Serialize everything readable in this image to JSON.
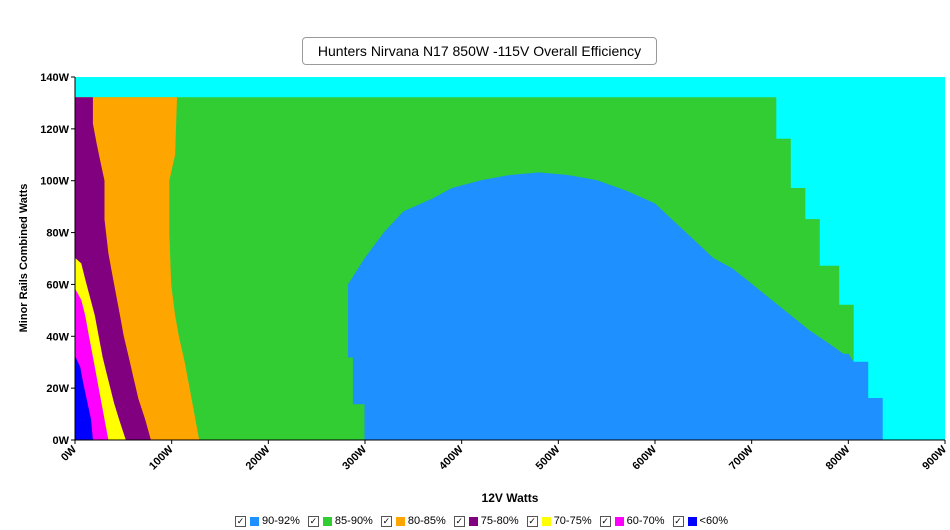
{
  "chart_data": {
    "type": "heatmap",
    "title": "Hunters Nirvana N17 850W -115V Overall Efficiency",
    "xlabel": "12V Watts",
    "ylabel": "Minor Rails Combined Watts",
    "xlim": [
      0,
      900
    ],
    "ylim": [
      0,
      140
    ],
    "x_ticks": [
      "0W",
      "100W",
      "200W",
      "300W",
      "400W",
      "500W",
      "600W",
      "700W",
      "800W",
      "900W"
    ],
    "y_ticks": [
      "0W",
      "20W",
      "40W",
      "60W",
      "80W",
      "100W",
      "120W",
      "140W"
    ],
    "background_color": "#00FFFF",
    "legend": [
      {
        "label": "90-92%",
        "color": "#1E90FF"
      },
      {
        "label": "85-90%",
        "color": "#32CD32"
      },
      {
        "label": "80-85%",
        "color": "#FFA500"
      },
      {
        "label": "75-80%",
        "color": "#800080"
      },
      {
        "label": "70-75%",
        "color": "#FFFF00"
      },
      {
        "label": "60-70%",
        "color": "#FF00FF"
      },
      {
        "label": "<60%",
        "color": "#0000FF"
      }
    ],
    "regions": [
      {
        "band": "85-90%",
        "color": "#32CD32",
        "boundary": [
          [
            0,
            0
          ],
          [
            0,
            132
          ],
          [
            725,
            132
          ],
          [
            725,
            116
          ],
          [
            740,
            116
          ],
          [
            740,
            97
          ],
          [
            755,
            97
          ],
          [
            755,
            85
          ],
          [
            770,
            85
          ],
          [
            770,
            67
          ],
          [
            790,
            67
          ],
          [
            790,
            52
          ],
          [
            805,
            52
          ],
          [
            805,
            0
          ]
        ]
      },
      {
        "band": "90-92%",
        "color": "#1E90FF",
        "boundary": [
          [
            300,
            0
          ],
          [
            300,
            14
          ],
          [
            288,
            14
          ],
          [
            288,
            32
          ],
          [
            283,
            32
          ],
          [
            283,
            60
          ],
          [
            300,
            70
          ],
          [
            320,
            80
          ],
          [
            340,
            88
          ],
          [
            370,
            93
          ],
          [
            390,
            97
          ],
          [
            420,
            100
          ],
          [
            450,
            102
          ],
          [
            480,
            103
          ],
          [
            510,
            102
          ],
          [
            540,
            100
          ],
          [
            570,
            96
          ],
          [
            600,
            91
          ],
          [
            620,
            84
          ],
          [
            640,
            77
          ],
          [
            660,
            70
          ],
          [
            680,
            66
          ],
          [
            700,
            60
          ],
          [
            720,
            54
          ],
          [
            740,
            48
          ],
          [
            760,
            42
          ],
          [
            780,
            37
          ],
          [
            795,
            33
          ],
          [
            800,
            33
          ],
          [
            805,
            30
          ],
          [
            820,
            30
          ],
          [
            820,
            16
          ],
          [
            835,
            16
          ],
          [
            835,
            0
          ]
        ]
      },
      {
        "band": "80-85%",
        "color": "#FFA500",
        "boundary": [
          [
            0,
            0
          ],
          [
            0,
            132
          ],
          [
            105,
            132
          ],
          [
            103,
            110
          ],
          [
            97,
            100
          ],
          [
            97,
            80
          ],
          [
            99,
            60
          ],
          [
            103,
            48
          ],
          [
            107,
            40
          ],
          [
            113,
            30
          ],
          [
            118,
            20
          ],
          [
            123,
            10
          ],
          [
            128,
            0
          ]
        ]
      },
      {
        "band": "75-80%",
        "color": "#800080",
        "boundary": [
          [
            0,
            0
          ],
          [
            0,
            132
          ],
          [
            18,
            132
          ],
          [
            18,
            122
          ],
          [
            22,
            114
          ],
          [
            26,
            107
          ],
          [
            30,
            100
          ],
          [
            30,
            85
          ],
          [
            34,
            72
          ],
          [
            38,
            64
          ],
          [
            42,
            56
          ],
          [
            46,
            48
          ],
          [
            50,
            40
          ],
          [
            55,
            32
          ],
          [
            60,
            24
          ],
          [
            65,
            16
          ],
          [
            72,
            8
          ],
          [
            78,
            0
          ]
        ]
      },
      {
        "band": "70-75%",
        "color": "#FFFF00",
        "boundary": [
          [
            0,
            0
          ],
          [
            0,
            70
          ],
          [
            6,
            68
          ],
          [
            10,
            62
          ],
          [
            15,
            55
          ],
          [
            20,
            48
          ],
          [
            24,
            40
          ],
          [
            28,
            32
          ],
          [
            32,
            26
          ],
          [
            36,
            20
          ],
          [
            40,
            14
          ],
          [
            45,
            8
          ],
          [
            52,
            0
          ]
        ]
      },
      {
        "band": "60-70%",
        "color": "#FF00FF",
        "boundary": [
          [
            0,
            0
          ],
          [
            0,
            58
          ],
          [
            6,
            54
          ],
          [
            10,
            48
          ],
          [
            14,
            40
          ],
          [
            18,
            32
          ],
          [
            22,
            24
          ],
          [
            26,
            16
          ],
          [
            30,
            8
          ],
          [
            34,
            0
          ]
        ]
      },
      {
        "band": "<60%",
        "color": "#0000FF",
        "boundary": [
          [
            0,
            0
          ],
          [
            0,
            32
          ],
          [
            5,
            28
          ],
          [
            8,
            22
          ],
          [
            12,
            15
          ],
          [
            16,
            8
          ],
          [
            18,
            0
          ]
        ]
      }
    ]
  }
}
